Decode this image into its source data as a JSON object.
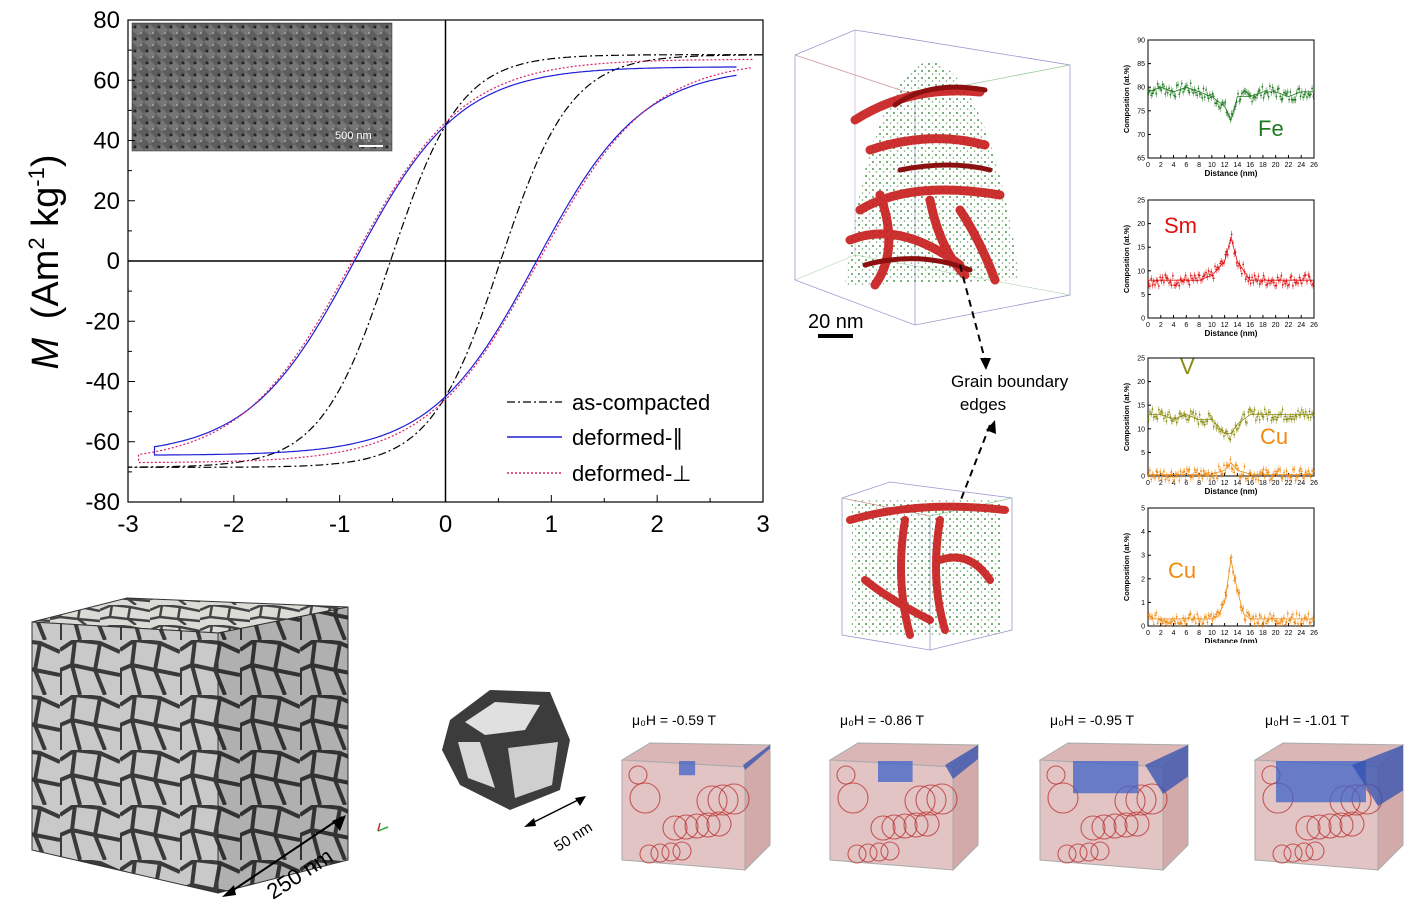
{
  "chart_data": [
    {
      "type": "line",
      "title": "",
      "xlabel": "",
      "ylabel": "M (Am² kg⁻¹)",
      "ylabel_parts": {
        "m": "M",
        "open": "(Am",
        "sup2": "2",
        "kg": " kg",
        "supm1": "-1",
        "close": ")"
      },
      "xlim": [
        -3,
        3
      ],
      "ylim": [
        -80,
        80
      ],
      "xticks": [
        "-3",
        "-2",
        "-1",
        "0",
        "1",
        "2",
        "3"
      ],
      "yticks": [
        "-80",
        "-60",
        "-40",
        "-20",
        "0",
        "20",
        "40",
        "60",
        "80"
      ],
      "legend_position": "bottom-right",
      "series": [
        {
          "name": "as-compacted",
          "color": "#000000",
          "style": "dashdot",
          "Ms": 68.5,
          "Hc": 0.52,
          "Mr": 45,
          "hmax": 3.0
        },
        {
          "name": "deformed-∥",
          "color": "#1f1fd6",
          "style": "solid",
          "Ms": 64.5,
          "Hc": 0.86,
          "Mr": 45,
          "hmax": 2.75
        },
        {
          "name": "deformed-⊥",
          "color": "#d6206a",
          "style": "dotted",
          "Ms": 67.0,
          "Hc": 0.88,
          "Mr": 46,
          "hmax": 2.9
        }
      ],
      "inset_scale": "500 nm"
    },
    {
      "type": "line",
      "element": "Fe",
      "color": "#1f7a1f",
      "xlabel": "Distance (nm)",
      "ylabel": "Composition (at.%)",
      "xlim": [
        0,
        26
      ],
      "ylim": [
        65,
        90
      ],
      "xticks": [
        "0",
        "2",
        "4",
        "6",
        "8",
        "10",
        "12",
        "14",
        "16",
        "18",
        "20",
        "22",
        "24",
        "26"
      ],
      "yticks": [
        "65",
        "70",
        "75",
        "80",
        "85",
        "90"
      ],
      "x": [
        0,
        2,
        4,
        6,
        8,
        10,
        12,
        13,
        14,
        16,
        18,
        20,
        22,
        24,
        26
      ],
      "values": [
        79,
        80,
        79,
        80,
        79,
        78,
        76,
        73,
        78,
        78,
        79,
        79,
        78,
        79,
        79
      ]
    },
    {
      "type": "line",
      "element": "Sm",
      "color": "#e01010",
      "xlabel": "Distance (nm)",
      "ylabel": "Composition (at.%)",
      "xlim": [
        0,
        26
      ],
      "ylim": [
        0,
        25
      ],
      "xticks": [
        "0",
        "2",
        "4",
        "6",
        "8",
        "10",
        "12",
        "14",
        "16",
        "18",
        "20",
        "22",
        "24",
        "26"
      ],
      "yticks": [
        "0",
        "5",
        "10",
        "15",
        "20",
        "25"
      ],
      "x": [
        0,
        2,
        4,
        6,
        8,
        10,
        12,
        13,
        14,
        16,
        18,
        20,
        22,
        24,
        26
      ],
      "values": [
        8,
        8,
        8,
        8,
        8,
        9,
        12,
        17,
        12,
        8,
        8,
        8,
        8,
        8,
        8
      ]
    },
    {
      "type": "line",
      "xlabel": "Distance (nm)",
      "ylabel": "Composition (at.%)",
      "xlim": [
        0,
        26
      ],
      "ylim": [
        0,
        25
      ],
      "xticks": [
        "0",
        "2",
        "4",
        "6",
        "8",
        "10",
        "12",
        "14",
        "16",
        "18",
        "20",
        "22",
        "24",
        "26"
      ],
      "yticks": [
        "0",
        "5",
        "10",
        "15",
        "20",
        "25"
      ],
      "series": [
        {
          "name": "V",
          "color": "#8c8c10",
          "x": [
            0,
            2,
            4,
            6,
            8,
            10,
            12,
            13,
            14,
            16,
            18,
            20,
            22,
            24,
            26
          ],
          "values": [
            13,
            13,
            12,
            13,
            12,
            12,
            9,
            9,
            11,
            13,
            13,
            13,
            13,
            13,
            13
          ]
        },
        {
          "name": "Cu",
          "color": "#f08a10",
          "x": [
            0,
            2,
            4,
            6,
            8,
            10,
            12,
            13,
            14,
            16,
            18,
            20,
            22,
            24,
            26
          ],
          "values": [
            0.3,
            0.3,
            0.3,
            0.3,
            0.3,
            0.4,
            1.2,
            2.8,
            1.2,
            0.4,
            0.3,
            0.3,
            0.3,
            0.3,
            0.3
          ]
        }
      ]
    },
    {
      "type": "line",
      "element": "Cu",
      "color": "#f08a10",
      "xlabel": "Distance (nm)",
      "ylabel": "Composition (at.%)",
      "xlim": [
        0,
        26
      ],
      "ylim": [
        0,
        5
      ],
      "xticks": [
        "0",
        "2",
        "4",
        "6",
        "8",
        "10",
        "12",
        "14",
        "16",
        "18",
        "20",
        "22",
        "24",
        "26"
      ],
      "yticks": [
        "0",
        "1",
        "2",
        "3",
        "4",
        "5"
      ],
      "x": [
        0,
        2,
        4,
        6,
        8,
        10,
        11,
        12,
        13,
        14,
        15,
        16,
        18,
        20,
        22,
        24,
        26
      ],
      "values": [
        0.3,
        0.3,
        0.3,
        0.3,
        0.3,
        0.3,
        0.4,
        1.0,
        2.8,
        1.5,
        0.5,
        0.3,
        0.3,
        0.3,
        0.3,
        0.3,
        0.3
      ]
    }
  ],
  "apt": {
    "scale_label": "20 nm",
    "annotation_line1": "Grain boundary",
    "annotation_line2": "edges"
  },
  "micromag": {
    "cube_scale": "250 nm",
    "grain_scale": "50 nm",
    "fields": [
      {
        "prefix": "μ₀H = ",
        "value": "-0.59 T",
        "blue": 0.05
      },
      {
        "prefix": "μ₀H = ",
        "value": "-0.86 T",
        "blue": 0.2
      },
      {
        "prefix": "μ₀H = ",
        "value": "-0.95 T",
        "blue": 0.45
      },
      {
        "prefix": "μ₀H = ",
        "value": "-1.01 T",
        "blue": 0.65
      }
    ]
  }
}
